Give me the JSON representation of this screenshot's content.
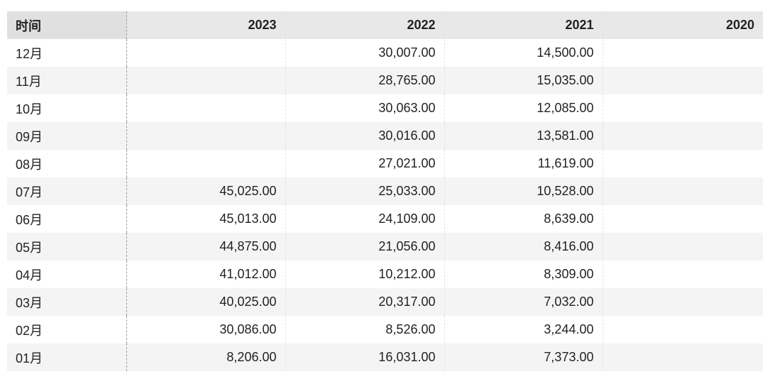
{
  "table": {
    "headers": [
      "时间",
      "2023",
      "2022",
      "2021",
      "2020"
    ],
    "rows": [
      {
        "month": "12月",
        "y2023": "",
        "y2022": "30,007.00",
        "y2021": "14,500.00",
        "y2020": ""
      },
      {
        "month": "11月",
        "y2023": "",
        "y2022": "28,765.00",
        "y2021": "15,035.00",
        "y2020": ""
      },
      {
        "month": "10月",
        "y2023": "",
        "y2022": "30,063.00",
        "y2021": "12,085.00",
        "y2020": ""
      },
      {
        "month": "09月",
        "y2023": "",
        "y2022": "30,016.00",
        "y2021": "13,581.00",
        "y2020": ""
      },
      {
        "month": "08月",
        "y2023": "",
        "y2022": "27,021.00",
        "y2021": "11,619.00",
        "y2020": ""
      },
      {
        "month": "07月",
        "y2023": "45,025.00",
        "y2022": "25,033.00",
        "y2021": "10,528.00",
        "y2020": ""
      },
      {
        "month": "06月",
        "y2023": "45,013.00",
        "y2022": "24,109.00",
        "y2021": "8,639.00",
        "y2020": ""
      },
      {
        "month": "05月",
        "y2023": "44,875.00",
        "y2022": "21,056.00",
        "y2021": "8,416.00",
        "y2020": ""
      },
      {
        "month": "04月",
        "y2023": "41,012.00",
        "y2022": "10,212.00",
        "y2021": "8,309.00",
        "y2020": ""
      },
      {
        "month": "03月",
        "y2023": "40,025.00",
        "y2022": "20,317.00",
        "y2021": "7,032.00",
        "y2020": ""
      },
      {
        "month": "02月",
        "y2023": "30,086.00",
        "y2022": "8,526.00",
        "y2021": "3,244.00",
        "y2020": ""
      },
      {
        "month": "01月",
        "y2023": "8,206.00",
        "y2022": "16,031.00",
        "y2021": "7,373.00",
        "y2020": ""
      }
    ]
  },
  "colors": {
    "header_bg": "#e8e8e8",
    "stripe_bg": "#f4f4f4",
    "text": "#222222"
  }
}
